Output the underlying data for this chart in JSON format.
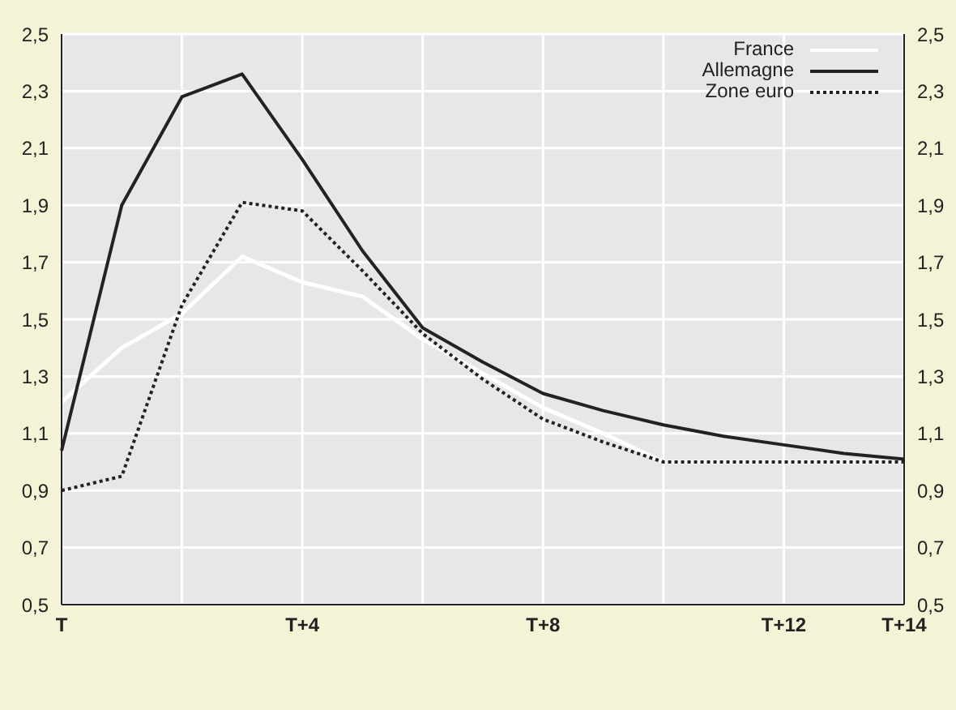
{
  "chart_data": {
    "type": "line",
    "categories": [
      "T",
      null,
      null,
      null,
      "T+4",
      null,
      null,
      null,
      "T+8",
      null,
      null,
      null,
      "T+12",
      null,
      "T+14"
    ],
    "series": [
      {
        "name": "France",
        "color": "#ffffff",
        "values": [
          1.21,
          1.4,
          1.52,
          1.72,
          1.63,
          1.58,
          1.43,
          1.31,
          1.19,
          1.1,
          1.0,
          1.0,
          1.0,
          1.0,
          1.0
        ],
        "line_style": "solid"
      },
      {
        "name": "Allemagne",
        "color": "#222222",
        "values": [
          1.04,
          1.9,
          2.28,
          2.36,
          2.06,
          1.74,
          1.47,
          1.35,
          1.24,
          1.18,
          1.13,
          1.09,
          1.06,
          1.03,
          1.01
        ],
        "line_style": "solid"
      },
      {
        "name": "Zone euro",
        "color": "#222222",
        "values": [
          0.9,
          0.95,
          1.55,
          1.91,
          1.88,
          1.67,
          1.45,
          1.29,
          1.15,
          1.07,
          1.0,
          1.0,
          1.0,
          1.0,
          1.0
        ],
        "line_style": "dotted"
      }
    ],
    "ylim": [
      0.5,
      2.5
    ],
    "yticks": [
      {
        "value": 0.5,
        "label": "0,5"
      },
      {
        "value": 0.7,
        "label": "0,7"
      },
      {
        "value": 0.9,
        "label": "0,9"
      },
      {
        "value": 1.1,
        "label": "1,1"
      },
      {
        "value": 1.3,
        "label": "1,3"
      },
      {
        "value": 1.5,
        "label": "1,5"
      },
      {
        "value": 1.7,
        "label": "1,7"
      },
      {
        "value": 1.9,
        "label": "1,9"
      },
      {
        "value": 2.1,
        "label": "2,1"
      },
      {
        "value": 2.3,
        "label": "2,3"
      },
      {
        "value": 2.5,
        "label": "2,5"
      }
    ],
    "y2lim": [
      0.5,
      2.5
    ],
    "y2ticks": [
      {
        "value": 0.5,
        "label": "0,5"
      },
      {
        "value": 0.7,
        "label": "0,7"
      },
      {
        "value": 0.9,
        "label": "0,9"
      },
      {
        "value": 1.1,
        "label": "1,1"
      },
      {
        "value": 1.3,
        "label": "1,3"
      },
      {
        "value": 1.5,
        "label": "1,5"
      },
      {
        "value": 1.7,
        "label": "1,7"
      },
      {
        "value": 1.9,
        "label": "1,9"
      },
      {
        "value": 2.1,
        "label": "2,1"
      },
      {
        "value": 2.3,
        "label": "2,3"
      },
      {
        "value": 2.5,
        "label": "2,5"
      }
    ],
    "grid": true,
    "legend": "top right",
    "marker": "none"
  }
}
